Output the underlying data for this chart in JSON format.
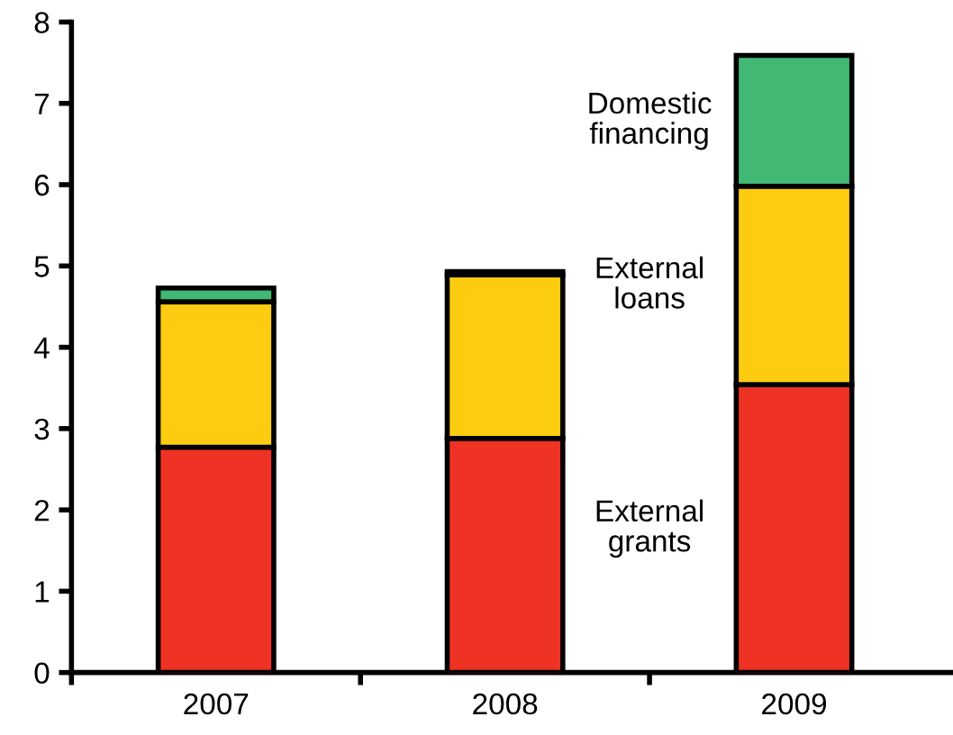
{
  "chart_data": {
    "type": "bar",
    "stacked": true,
    "categories": [
      "2007",
      "2008",
      "2009"
    ],
    "series": [
      {
        "name": "External grants",
        "color": "#ee3224",
        "values": [
          2.77,
          2.88,
          3.54
        ]
      },
      {
        "name": "External loans",
        "color": "#fdcb10",
        "values": [
          1.79,
          2.01,
          2.44
        ]
      },
      {
        "name": "Domestic financing",
        "color": "#41b974",
        "values": [
          0.17,
          0.04,
          1.61
        ]
      }
    ],
    "ylim": [
      0,
      8
    ],
    "yticks": [
      0,
      1,
      2,
      3,
      4,
      5,
      6,
      7,
      8
    ],
    "grid": false,
    "legend": false
  }
}
